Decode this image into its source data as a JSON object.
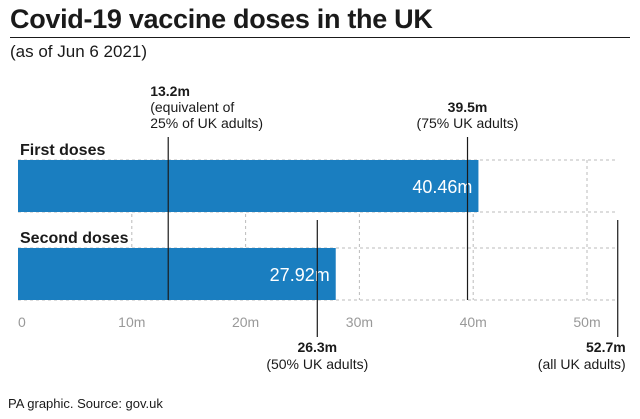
{
  "title": "Covid-19 vaccine doses in the UK",
  "subtitle": "(as of Jun 6 2021)",
  "source": "PA graphic. Source: gov.uk",
  "colors": {
    "bar": "#1a7ec0",
    "text": "#1a1a1a",
    "axis": "#999999",
    "grid": "#bbbbbb"
  },
  "chart_data": {
    "type": "bar",
    "orientation": "horizontal",
    "categories": [
      "First doses",
      "Second doses"
    ],
    "values": [
      40.46,
      27.92
    ],
    "value_labels": [
      "40.46m",
      "27.92m"
    ],
    "xlim": [
      0,
      52.7
    ],
    "xticks": [
      0,
      10,
      20,
      30,
      40,
      50
    ],
    "xtick_labels": [
      "0",
      "10m",
      "20m",
      "30m",
      "40m",
      "50m"
    ],
    "grid": true,
    "reference_lines": [
      {
        "value": 13.2,
        "label_value": "13.2m",
        "label_lines": [
          "(equivalent of",
          "25% of UK adults)"
        ],
        "position": "top"
      },
      {
        "value": 39.5,
        "label_value": "39.5m",
        "label_lines": [
          "(75% UK adults)"
        ],
        "position": "top"
      },
      {
        "value": 26.3,
        "label_value": "26.3m",
        "label_lines": [
          "(50% UK adults)"
        ],
        "position": "bottom"
      },
      {
        "value": 52.7,
        "label_value": "52.7m",
        "label_lines": [
          "(all UK adults)"
        ],
        "position": "bottom"
      }
    ]
  }
}
